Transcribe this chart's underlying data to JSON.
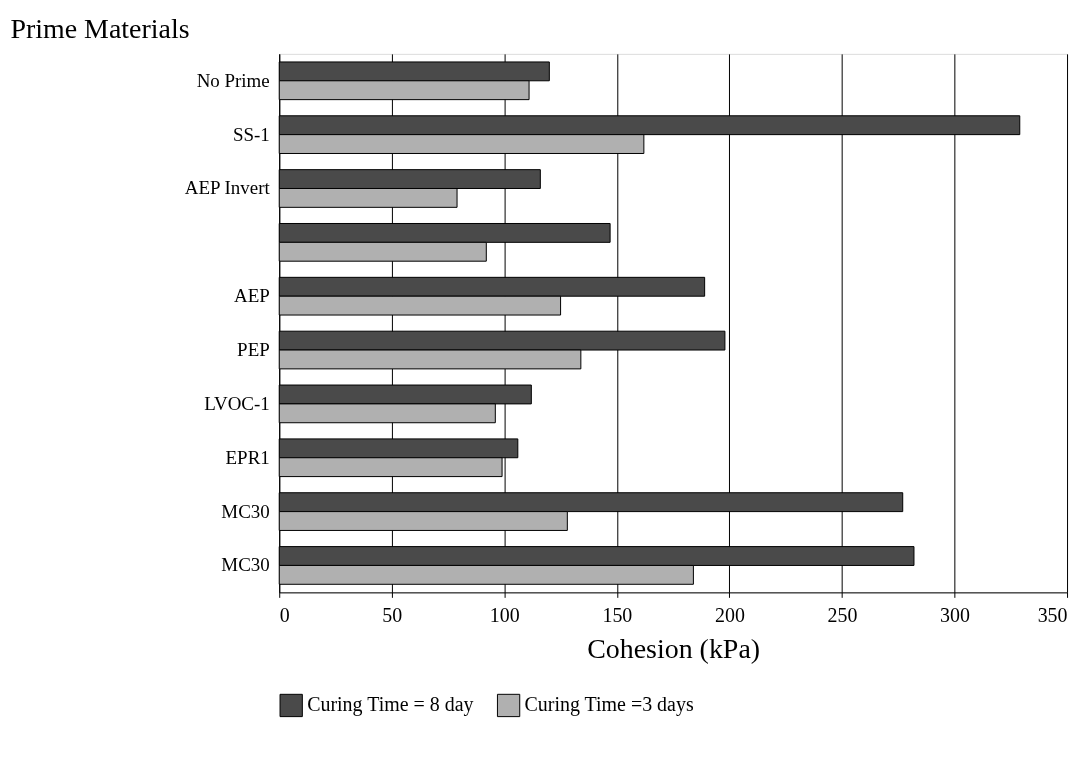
{
  "chart_data": {
    "type": "bar",
    "orientation": "horizontal",
    "ylabel": "Prime Materials",
    "xlabel": "Cohesion (kPa)",
    "categories": [
      "No Prime",
      "SS-1",
      "AEP Invert",
      null,
      "AEP",
      "PEP",
      "LVOC-1",
      "EPR1",
      "MC30",
      "MC30"
    ],
    "series": [
      {
        "name": "Curing Time = 8 day",
        "color": "#4a4a4a",
        "values": [
          120,
          329,
          116,
          147,
          189,
          198,
          112,
          106,
          277,
          282
        ]
      },
      {
        "name": "Curing Time =3 days",
        "color": "#b0b0b0",
        "values": [
          111,
          162,
          79,
          92,
          125,
          134,
          96,
          99,
          128,
          184
        ]
      }
    ],
    "xlim": [
      0,
      350
    ],
    "xticks": [
      0,
      50,
      100,
      150,
      200,
      250,
      300,
      350
    ],
    "grid": "x",
    "legend": "bottom"
  }
}
